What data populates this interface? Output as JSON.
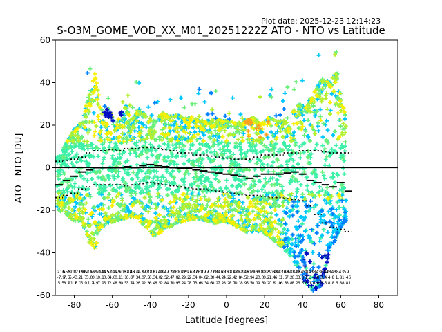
{
  "header": {
    "plot_date": "Plot date: 2025-12-23 12:14:23",
    "title": "S-O3M_GOME_VOD_XX_M01_20251222Z ATO - NTO vs Latitude"
  },
  "chart_data": {
    "type": "scatter",
    "title": "S-O3M_GOME_VOD_XX_M01_20251222Z ATO - NTO vs Latitude",
    "xlabel": "Latitude [degrees]",
    "ylabel": "ATO - NTO [DU]",
    "xlim": [
      -90,
      90
    ],
    "ylim": [
      -60,
      60
    ],
    "x_ticks": [
      -80,
      -60,
      -40,
      -20,
      0,
      20,
      40,
      60,
      80
    ],
    "y_ticks": [
      -60,
      -40,
      -20,
      0,
      20,
      40,
      60
    ],
    "grid": false,
    "zero_line": 0,
    "marker": "plus",
    "colors": {
      "base_teal": "#3cf0a8",
      "green": "#6af07a",
      "lime": "#b4f030",
      "yellow": "#f8f000",
      "orange": "#ffa020",
      "cyan": "#00c8ff",
      "blue": "#0080ff",
      "navy": "#0010c0",
      "mean": "#000000"
    },
    "scatter_envelope": {
      "latitude": [
        -88,
        -84,
        -80,
        -76,
        -72,
        -69,
        -66,
        -62,
        -58,
        -54,
        -50,
        -46,
        -42,
        -38,
        -34,
        -30,
        -26,
        -22,
        -18,
        -14,
        -10,
        -6,
        -2,
        2,
        6,
        10,
        14,
        18,
        22,
        26,
        30,
        34,
        38,
        42,
        46,
        50,
        54,
        58,
        62
      ],
      "upper": [
        5,
        12,
        18,
        22,
        35,
        45,
        25,
        28,
        20,
        32,
        22,
        28,
        24,
        22,
        26,
        24,
        25,
        23,
        24,
        22,
        22,
        23,
        22,
        22,
        20,
        22,
        24,
        20,
        24,
        22,
        22,
        25,
        30,
        28,
        35,
        42,
        40,
        45,
        25
      ],
      "lower": [
        -20,
        -22,
        -25,
        -25,
        -35,
        -38,
        -28,
        -26,
        -25,
        -24,
        -23,
        -25,
        -28,
        -32,
        -30,
        -28,
        -26,
        -25,
        -24,
        -24,
        -25,
        -26,
        -25,
        -26,
        -28,
        -30,
        -30,
        -30,
        -32,
        -35,
        -38,
        -42,
        -48,
        -55,
        -58,
        -55,
        -40,
        -32,
        -25
      ]
    },
    "mean_line": {
      "latitude": [
        -88,
        -84,
        -80,
        -76,
        -72,
        -68,
        -64,
        -60,
        -56,
        -52,
        -48,
        -44,
        -40,
        -36,
        -32,
        -28,
        -24,
        -20,
        -16,
        -12,
        -8,
        -4,
        0,
        4,
        8,
        12,
        16,
        20,
        24,
        28,
        32,
        36,
        40,
        44,
        48,
        52,
        56,
        60,
        64
      ],
      "value": [
        -8,
        -6,
        -4,
        -2,
        -1,
        0,
        0,
        0,
        0,
        0.5,
        0,
        1,
        1.5,
        1,
        0.5,
        0,
        -0.5,
        -0.5,
        -1,
        -1.5,
        -2,
        -2.5,
        -3,
        -3.5,
        -4,
        -5,
        -4,
        -3,
        -3,
        -3,
        -2.5,
        -2,
        -3,
        -6,
        -7,
        -8,
        -9,
        -7,
        -11
      ]
    },
    "std_upper": {
      "latitude": [
        -88,
        -84,
        -80,
        -76,
        -72,
        -68,
        -64,
        -60,
        -56,
        -52,
        -48,
        -44,
        -40,
        -36,
        -32,
        -28,
        -24,
        -20,
        -16,
        -12,
        -8,
        -4,
        0,
        4,
        8,
        12,
        16,
        20,
        24,
        28,
        32,
        36,
        40,
        44,
        48,
        52,
        56,
        60,
        64
      ],
      "value": [
        3,
        3.5,
        4,
        5,
        7,
        8,
        8,
        8.5,
        8,
        9,
        9,
        9.5,
        9.5,
        9,
        8.5,
        8,
        7,
        7,
        6,
        6,
        5.5,
        5,
        4.5,
        4,
        4,
        4,
        5,
        6,
        6,
        6,
        7,
        7,
        8,
        8,
        8,
        7.5,
        7,
        7,
        7
      ]
    },
    "std_lower": {
      "latitude": [
        -88,
        -84,
        -80,
        -76,
        -72,
        -68,
        -64,
        -60,
        -56,
        -52,
        -48,
        -44,
        -40,
        -36,
        -32,
        -28,
        -24,
        -20,
        -16,
        -12,
        -8,
        -4,
        0,
        4,
        8,
        12,
        16,
        20,
        24,
        28,
        32,
        36,
        40,
        44,
        48,
        52,
        56,
        60,
        64
      ],
      "value": [
        -14,
        -13,
        -12,
        -10,
        -9,
        -8,
        -8,
        -8,
        -8,
        -8.5,
        -8,
        -7.5,
        -7,
        -7.5,
        -8,
        -8.5,
        -9,
        -9.5,
        -10,
        -10,
        -10.5,
        -11,
        -11.5,
        -12,
        -12.5,
        -13,
        -13,
        -13.5,
        -14,
        -14,
        -14.5,
        -15,
        -15.5,
        -18,
        -22,
        -26,
        -28,
        -29,
        -30
      ]
    },
    "bin_annotations": [
      {
        "lat": -87,
        "lines": [
          "216",
          "-7.9",
          "5.5"
        ]
      },
      {
        "lat": -84,
        "lines": [
          "655",
          "7.5",
          "8.7"
        ]
      },
      {
        "lat": -81,
        "lines": [
          "803",
          "5.4",
          "11.7"
        ]
      },
      {
        "lat": -78,
        "lines": [
          "1273",
          "3.2",
          "6.0"
        ]
      },
      {
        "lat": -75,
        "lines": [
          "1904",
          "1.7",
          "5.9"
        ]
      },
      {
        "lat": -72,
        "lines": [
          "6746",
          "3.0",
          "11.7"
        ]
      },
      {
        "lat": -69,
        "lines": [
          "5193",
          "0.1",
          "4.9"
        ]
      },
      {
        "lat": -66,
        "lines": [
          "5044",
          "0.1",
          "7.9"
        ]
      },
      {
        "lat": -63,
        "lines": [
          "4957",
          "0.0",
          "5.7"
        ]
      },
      {
        "lat": -60,
        "lines": [
          "5049",
          "4.0",
          "2.4"
        ]
      },
      {
        "lat": -57,
        "lines": [
          "1491",
          "0.1",
          "8.8"
        ]
      },
      {
        "lat": -54,
        "lines": [
          "6087",
          "1.1",
          "0.5"
        ]
      },
      {
        "lat": -51,
        "lines": [
          "3885",
          "0.8",
          "3.7"
        ]
      },
      {
        "lat": -48,
        "lines": [
          "4370",
          "7.3",
          "4.2"
        ]
      },
      {
        "lat": -45,
        "lines": [
          "3477",
          "4.0",
          "6.9"
        ]
      },
      {
        "lat": -42,
        "lines": [
          "8787",
          "7.5",
          "2.3"
        ]
      },
      {
        "lat": -39,
        "lines": [
          "7817",
          "0.3",
          "6.4"
        ]
      },
      {
        "lat": -36,
        "lines": [
          "8148",
          "4.0",
          "8.5"
        ]
      },
      {
        "lat": -33,
        "lines": [
          "0377",
          "2.5",
          "2.8"
        ]
      },
      {
        "lat": -30,
        "lines": [
          "4778",
          "2.4",
          "4.7"
        ]
      },
      {
        "lat": -27,
        "lines": [
          "2768",
          "7.0",
          "0.9"
        ]
      },
      {
        "lat": -24,
        "lines": [
          "7702",
          "2.2",
          "5.2"
        ]
      },
      {
        "lat": -21,
        "lines": [
          "7697",
          "9.2",
          "4.7"
        ]
      },
      {
        "lat": -18,
        "lines": [
          "7687",
          "2.3",
          "8.7"
        ]
      },
      {
        "lat": -15,
        "lines": [
          "7768",
          "4.0",
          "3.6"
        ]
      },
      {
        "lat": -12,
        "lines": [
          "7777",
          "4.8",
          "6.3"
        ]
      },
      {
        "lat": -9,
        "lines": [
          "7777",
          "2.3",
          "4.6"
        ]
      },
      {
        "lat": -6,
        "lines": [
          "7784",
          "0.4",
          "8.2"
        ]
      },
      {
        "lat": -3,
        "lines": [
          "7768",
          "4.2",
          "7.2"
        ]
      },
      {
        "lat": 0,
        "lines": [
          "7782",
          "4.2",
          "8.2"
        ]
      },
      {
        "lat": 3,
        "lines": [
          "7878",
          "2.4",
          "8.7"
        ]
      },
      {
        "lat": 6,
        "lines": [
          "4757",
          "2.8",
          "0.1"
        ]
      },
      {
        "lat": 9,
        "lines": [
          "4806",
          "4.5",
          "8.9"
        ]
      },
      {
        "lat": 12,
        "lines": [
          "4829",
          "2.9",
          "5.5"
        ]
      },
      {
        "lat": 15,
        "lines": [
          "5006",
          "4.2",
          "0.1"
        ]
      },
      {
        "lat": 18,
        "lines": [
          "5181",
          "0.0",
          "9.5"
        ]
      },
      {
        "lat": 21,
        "lines": [
          "3829",
          "0.2",
          "9.2"
        ]
      },
      {
        "lat": 24,
        "lines": [
          "3768",
          "1.4",
          "0.8"
        ]
      },
      {
        "lat": 27,
        "lines": [
          "3843",
          "6.1",
          "1.8"
        ]
      },
      {
        "lat": 30,
        "lines": [
          "3768",
          "1.6",
          "6.8"
        ]
      },
      {
        "lat": 33,
        "lines": [
          "4843",
          "7.2",
          "3.8"
        ]
      },
      {
        "lat": 36,
        "lines": [
          "3843",
          "6.3",
          "8.2"
        ]
      },
      {
        "lat": 39,
        "lines": [
          "7843",
          "3.8",
          "6.3"
        ]
      },
      {
        "lat": 43,
        "lines": [
          "5843",
          "1.3",
          "8.1"
        ]
      },
      {
        "lat": 47,
        "lines": [
          "3843",
          "1.8",
          "6.8"
        ]
      },
      {
        "lat": 51,
        "lines": [
          "3682",
          "3.4",
          "3.5"
        ]
      },
      {
        "lat": 55,
        "lines": [
          "4843",
          "4.8",
          "8.8"
        ]
      },
      {
        "lat": 59,
        "lines": [
          "3843",
          "1.8",
          "6.8"
        ]
      },
      {
        "lat": 63,
        "lines": [
          "59",
          "1.46",
          "8.81"
        ]
      }
    ]
  }
}
